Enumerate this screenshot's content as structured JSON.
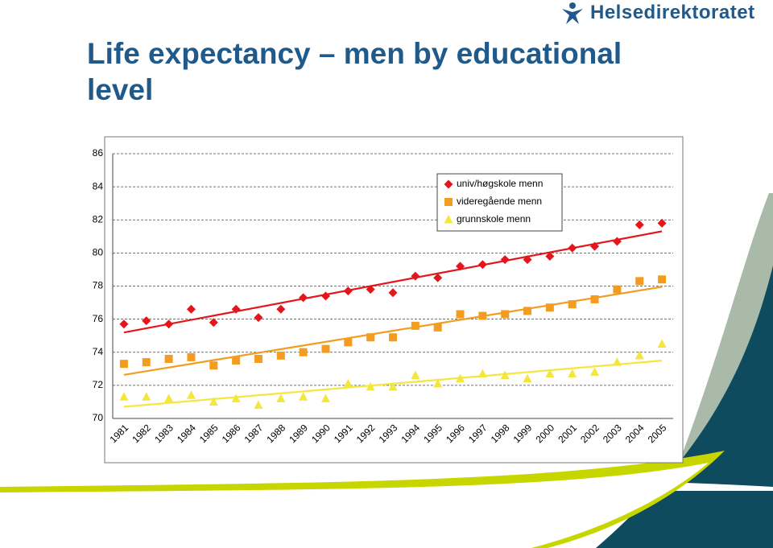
{
  "logo": "Helsedirektoratet",
  "chart_data": {
    "type": "scatter",
    "title": "Life expectancy – men by educational level",
    "categories": [
      "1981",
      "1982",
      "1983",
      "1984",
      "1985",
      "1986",
      "1987",
      "1988",
      "1989",
      "1990",
      "1991",
      "1992",
      "1993",
      "1994",
      "1995",
      "1996",
      "1997",
      "1998",
      "1999",
      "2000",
      "2001",
      "2002",
      "2003",
      "2004",
      "2005"
    ],
    "series": [
      {
        "name": "univ/høgskole menn",
        "color": "#e3161b",
        "marker": "diamond",
        "values": [
          75.7,
          75.9,
          75.7,
          76.6,
          75.8,
          76.6,
          76.1,
          76.6,
          77.3,
          77.4,
          77.7,
          77.8,
          77.6,
          78.6,
          78.5,
          79.2,
          79.3,
          79.6,
          79.6,
          79.8,
          80.3,
          80.4,
          80.7,
          81.7,
          81.8
        ]
      },
      {
        "name": "videregående menn",
        "color": "#f39c1f",
        "marker": "square",
        "values": [
          73.3,
          73.4,
          73.6,
          73.7,
          73.2,
          73.5,
          73.6,
          73.8,
          74.0,
          74.2,
          74.6,
          74.9,
          74.9,
          75.6,
          75.5,
          76.3,
          76.2,
          76.3,
          76.5,
          76.7,
          76.9,
          77.2,
          77.8,
          78.3,
          78.4
        ]
      },
      {
        "name": "grunnskole menn",
        "color": "#f5e63c",
        "marker": "triangle",
        "values": [
          71.3,
          71.3,
          71.2,
          71.4,
          71.0,
          71.2,
          70.8,
          71.2,
          71.3,
          71.2,
          72.1,
          71.9,
          71.9,
          72.6,
          72.1,
          72.4,
          72.7,
          72.6,
          72.4,
          72.7,
          72.7,
          72.8,
          73.4,
          73.8,
          74.5
        ]
      }
    ],
    "ylim": [
      70,
      86
    ],
    "yticks": [
      70,
      72,
      74,
      76,
      78,
      80,
      82,
      84,
      86
    ],
    "grid": true,
    "trendline": true
  }
}
